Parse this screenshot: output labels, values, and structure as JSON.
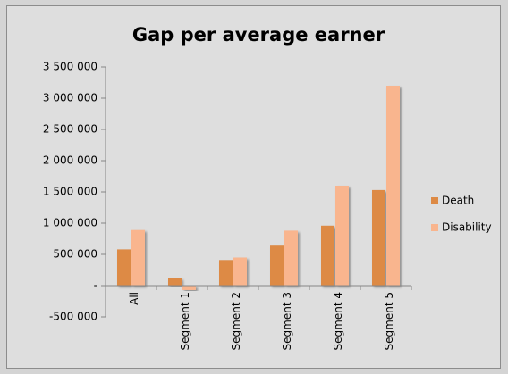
{
  "chart_data": {
    "type": "bar",
    "title": "Gap per average earner",
    "categories": [
      "All",
      "Segment 1",
      "Segment 2",
      "Segment 3",
      "Segment 4",
      "Segment 5"
    ],
    "series": [
      {
        "name": "Death",
        "color": "#dd8a45",
        "values": [
          580000,
          120000,
          410000,
          640000,
          960000,
          1530000
        ]
      },
      {
        "name": "Disability",
        "color": "#f9b58e",
        "values": [
          890000,
          -70000,
          450000,
          880000,
          1600000,
          3200000
        ]
      }
    ],
    "ylim": [
      -500000,
      3500000
    ],
    "yticks": [
      {
        "value": -500000,
        "label": "-500 000"
      },
      {
        "value": 0,
        "label": "-"
      },
      {
        "value": 500000,
        "label": "500 000"
      },
      {
        "value": 1000000,
        "label": "1 000 000"
      },
      {
        "value": 1500000,
        "label": "1 500 000"
      },
      {
        "value": 2000000,
        "label": "2 000 000"
      },
      {
        "value": 2500000,
        "label": "2 500 000"
      },
      {
        "value": 3000000,
        "label": "3 000 000"
      },
      {
        "value": 3500000,
        "label": "3 500 000"
      }
    ],
    "grid": false,
    "legend": "right"
  }
}
